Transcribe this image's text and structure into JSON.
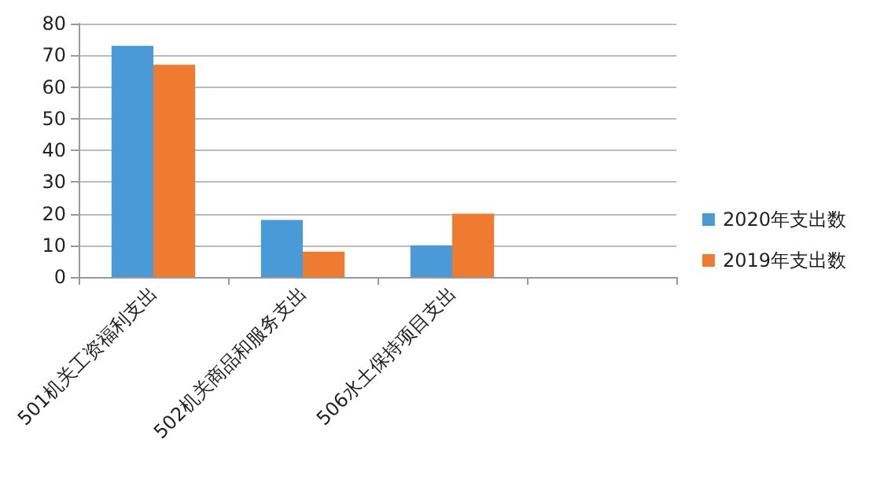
{
  "chart_data": {
    "type": "bar",
    "categories": [
      "501机关工资福利支出",
      "502机关商品和服务支出",
      "506水土保持项目支出",
      null
    ],
    "series": [
      {
        "name": "2020年支出数",
        "color": "#4a9ad8",
        "values": [
          73,
          18,
          10,
          null
        ]
      },
      {
        "name": "2019年支出数",
        "color": "#ee7b30",
        "values": [
          67,
          8,
          20,
          null
        ]
      }
    ],
    "ylim": [
      0,
      80
    ],
    "yticks": [
      0,
      10,
      20,
      30,
      40,
      50,
      60,
      70,
      80
    ],
    "grid": "y",
    "legend": "right"
  }
}
